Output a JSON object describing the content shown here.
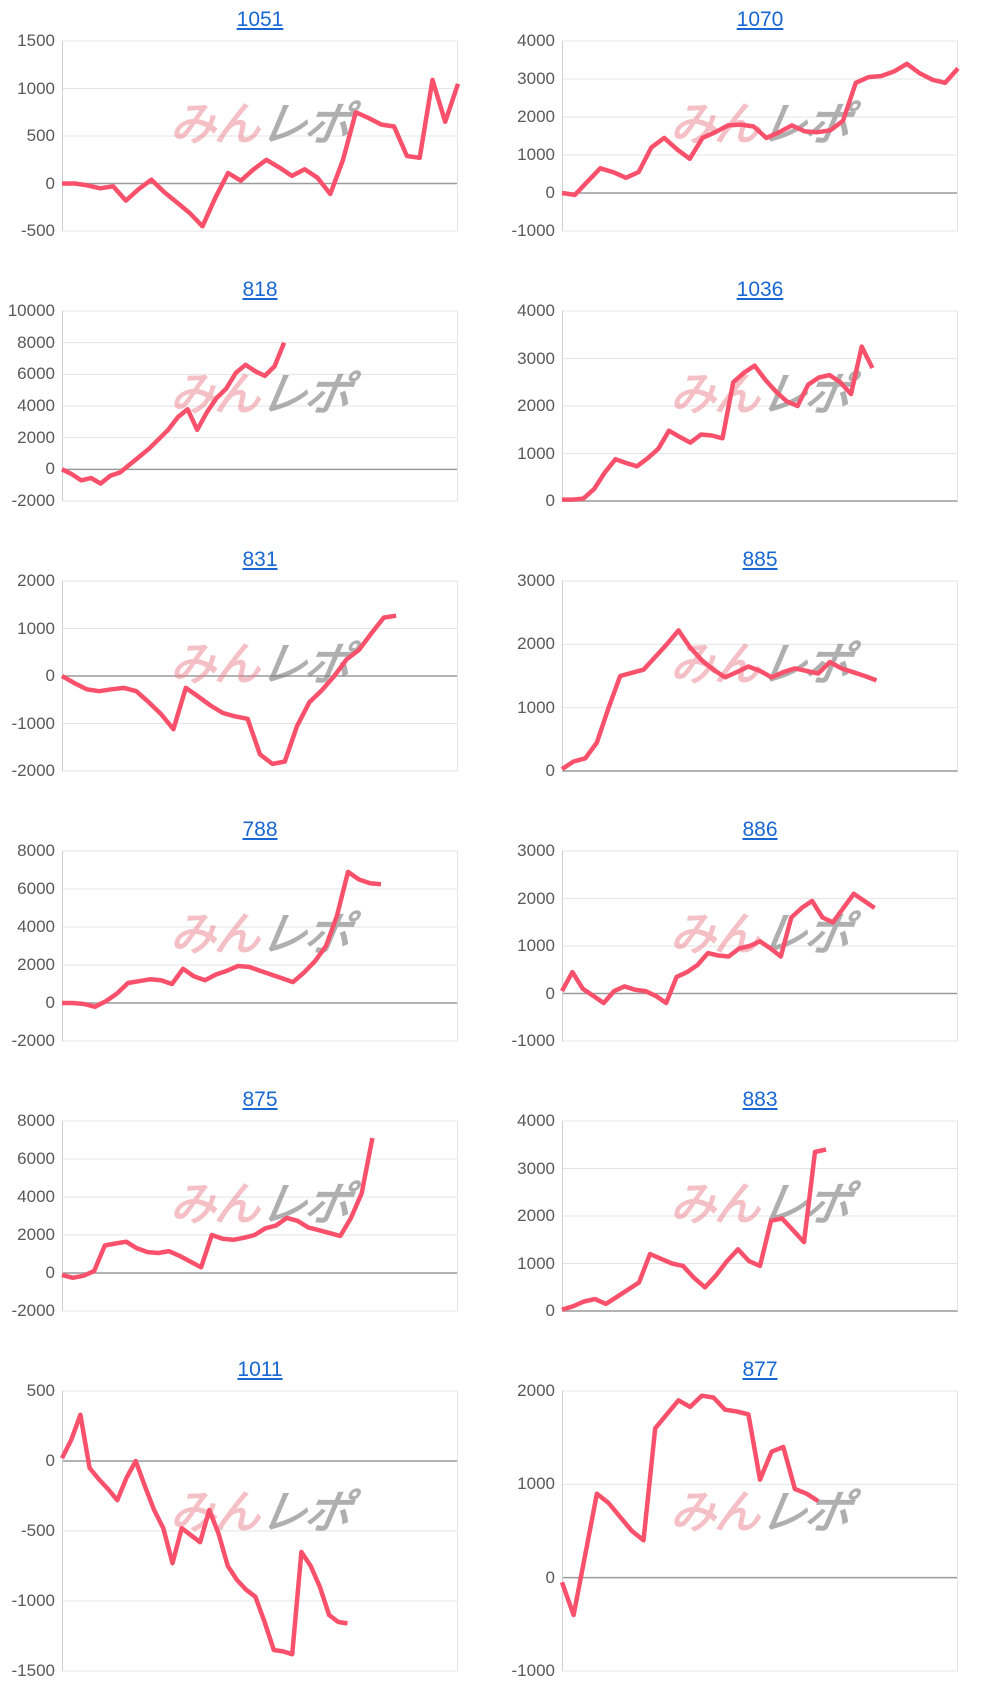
{
  "watermark": {
    "left": "みん",
    "right": "レポ"
  },
  "colors": {
    "line": "#F9516C",
    "title_link": "#1967D2",
    "gridline": "#E4E4E4",
    "zero_line": "#9A9A9A",
    "axis_line": "#CFCFCF",
    "tick_text": "#595959"
  },
  "chart_data": [
    {
      "type": "line",
      "title": "1051",
      "yticks": [
        "1500",
        "1000",
        "500",
        "0",
        "-500"
      ],
      "ylim": [
        -500,
        1500
      ],
      "x_slots": 32,
      "values": [
        0,
        0,
        -20,
        -50,
        -30,
        -180,
        -60,
        40,
        -90,
        -200,
        -310,
        -450,
        -150,
        110,
        30,
        150,
        250,
        170,
        80,
        150,
        60,
        -110,
        250,
        750,
        690,
        620,
        600,
        290,
        270,
        1090,
        650,
        1050
      ]
    },
    {
      "type": "line",
      "title": "1070",
      "yticks": [
        "4000",
        "3000",
        "2000",
        "1000",
        "0",
        "-1000"
      ],
      "ylim": [
        -1000,
        4000
      ],
      "x_slots": 32,
      "values": [
        0,
        -50,
        300,
        650,
        550,
        400,
        550,
        1200,
        1450,
        1150,
        900,
        1450,
        1600,
        1780,
        1800,
        1750,
        1450,
        1600,
        1780,
        1620,
        1600,
        1650,
        1900,
        2900,
        3050,
        3080,
        3200,
        3400,
        3150,
        2980,
        2900,
        3280
      ]
    },
    {
      "type": "line",
      "title": "818",
      "yticks": [
        "10000",
        "8000",
        "6000",
        "4000",
        "2000",
        "0",
        "-2000"
      ],
      "ylim": [
        -2000,
        10000
      ],
      "x_slots": 42,
      "values": [
        0,
        -300,
        -700,
        -550,
        -900,
        -400,
        -200,
        300,
        800,
        1300,
        1900,
        2500,
        3300,
        3800,
        2500,
        3600,
        4500,
        5100,
        6100,
        6600,
        6200,
        5900,
        6500,
        8000
      ]
    },
    {
      "type": "line",
      "title": "1036",
      "yticks": [
        "4000",
        "3000",
        "2000",
        "1000",
        "0"
      ],
      "ylim": [
        0,
        4000
      ],
      "x_slots": 38,
      "values": [
        30,
        30,
        50,
        250,
        600,
        880,
        800,
        730,
        900,
        1100,
        1480,
        1350,
        1230,
        1400,
        1380,
        1320,
        2500,
        2700,
        2850,
        2550,
        2300,
        2100,
        2000,
        2450,
        2600,
        2650,
        2500,
        2250,
        3250,
        2800
      ]
    },
    {
      "type": "line",
      "title": "831",
      "yticks": [
        "2000",
        "1000",
        "0",
        "-1000",
        "-2000"
      ],
      "ylim": [
        -2000,
        2000
      ],
      "x_slots": 33,
      "values": [
        0,
        -150,
        -280,
        -320,
        -280,
        -250,
        -320,
        -550,
        -800,
        -1120,
        -250,
        -430,
        -620,
        -780,
        -850,
        -900,
        -1650,
        -1850,
        -1800,
        -1050,
        -550,
        -300,
        0,
        350,
        550,
        900,
        1230,
        1270
      ]
    },
    {
      "type": "line",
      "title": "885",
      "yticks": [
        "3000",
        "2000",
        "1000",
        "0"
      ],
      "ylim": [
        0,
        3000
      ],
      "x_slots": 35,
      "values": [
        30,
        150,
        200,
        450,
        1000,
        1500,
        1550,
        1600,
        1800,
        2000,
        2220,
        1950,
        1750,
        1600,
        1480,
        1560,
        1650,
        1580,
        1480,
        1560,
        1620,
        1580,
        1540,
        1720,
        1620,
        1560,
        1500,
        1430
      ]
    },
    {
      "type": "line",
      "title": "788",
      "yticks": [
        "8000",
        "6000",
        "4000",
        "2000",
        "0",
        "-2000"
      ],
      "ylim": [
        -2000,
        8000
      ],
      "x_slots": 37,
      "values": [
        0,
        0,
        -50,
        -200,
        100,
        500,
        1050,
        1150,
        1250,
        1200,
        1000,
        1800,
        1400,
        1200,
        1500,
        1700,
        1950,
        1900,
        1700,
        1500,
        1300,
        1100,
        1600,
        2200,
        3000,
        4600,
        6900,
        6500,
        6300,
        6250
      ]
    },
    {
      "type": "line",
      "title": "886",
      "yticks": [
        "3000",
        "2000",
        "1000",
        "0",
        "-1000"
      ],
      "ylim": [
        -1000,
        3000
      ],
      "x_slots": 39,
      "values": [
        50,
        450,
        100,
        -50,
        -200,
        50,
        150,
        80,
        50,
        -50,
        -200,
        350,
        450,
        600,
        850,
        800,
        780,
        950,
        1000,
        1100,
        950,
        780,
        1600,
        1800,
        1950,
        1600,
        1500,
        1800,
        2100,
        1950,
        1800
      ]
    },
    {
      "type": "line",
      "title": "875",
      "yticks": [
        "8000",
        "6000",
        "4000",
        "2000",
        "0",
        "-2000"
      ],
      "ylim": [
        -2000,
        8000
      ],
      "x_slots": 38,
      "values": [
        -100,
        -250,
        -150,
        100,
        1450,
        1550,
        1650,
        1300,
        1100,
        1050,
        1150,
        900,
        600,
        300,
        2000,
        1800,
        1750,
        1850,
        2000,
        2350,
        2500,
        2900,
        2750,
        2400,
        2250,
        2100,
        1950,
        2900,
        4200,
        7100
      ]
    },
    {
      "type": "line",
      "title": "883",
      "yticks": [
        "4000",
        "3000",
        "2000",
        "1000",
        "0"
      ],
      "ylim": [
        0,
        4000
      ],
      "x_slots": 37,
      "values": [
        30,
        100,
        200,
        250,
        150,
        300,
        450,
        600,
        1200,
        1100,
        1000,
        950,
        700,
        500,
        750,
        1050,
        1300,
        1050,
        950,
        1900,
        1950,
        1700,
        1450,
        3350,
        3400
      ]
    },
    {
      "type": "line",
      "title": "1011",
      "yticks": [
        "500",
        "0",
        "-500",
        "-1000",
        "-1500"
      ],
      "ylim": [
        -1500,
        500
      ],
      "x_slots": 44,
      "values": [
        20,
        150,
        330,
        -50,
        -130,
        -200,
        -280,
        -120,
        0,
        -180,
        -350,
        -480,
        -730,
        -480,
        -530,
        -580,
        -350,
        -520,
        -750,
        -850,
        -920,
        -970,
        -1150,
        -1350,
        -1360,
        -1380,
        -650,
        -750,
        -900,
        -1100,
        -1150,
        -1160
      ]
    },
    {
      "type": "line",
      "title": "877",
      "yticks": [
        "2000",
        "1000",
        "0",
        "-1000"
      ],
      "ylim": [
        -1000,
        2000
      ],
      "x_slots": 35,
      "values": [
        -50,
        -400,
        250,
        900,
        800,
        650,
        500,
        400,
        1600,
        1750,
        1900,
        1830,
        1950,
        1930,
        1800,
        1780,
        1750,
        1050,
        1350,
        1400,
        950,
        900,
        820
      ]
    }
  ]
}
